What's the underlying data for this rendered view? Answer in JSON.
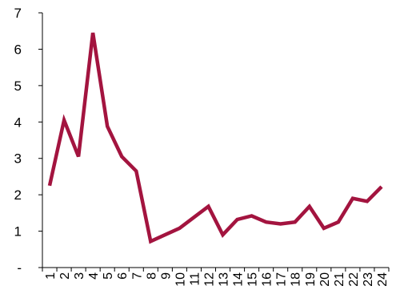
{
  "chart_data": {
    "type": "line",
    "title": "",
    "xlabel": "",
    "ylabel": "",
    "x": [
      "1",
      "2",
      "3",
      "4",
      "5",
      "6",
      "7",
      "8",
      "9",
      "10",
      "11",
      "12",
      "13",
      "14",
      "15",
      "16",
      "17",
      "18",
      "19",
      "20",
      "21",
      "22",
      "23",
      "24"
    ],
    "series": [
      {
        "values": [
          2.25,
          4.05,
          3.05,
          6.45,
          3.88,
          3.05,
          2.65,
          0.72,
          0.9,
          1.08,
          1.38,
          1.68,
          0.9,
          1.32,
          1.42,
          1.25,
          1.2,
          1.25,
          1.68,
          1.08,
          1.25,
          1.9,
          1.82,
          2.22
        ],
        "color": "#a3143f"
      }
    ],
    "ylim": [
      0,
      7
    ],
    "y_ticks": [
      {
        "value": 0,
        "label": "-"
      },
      {
        "value": 1,
        "label": "1"
      },
      {
        "value": 2,
        "label": "2"
      },
      {
        "value": 3,
        "label": "3"
      },
      {
        "value": 4,
        "label": "4"
      },
      {
        "value": 5,
        "label": "5"
      },
      {
        "value": 6,
        "label": "6"
      },
      {
        "value": 7,
        "label": "7"
      }
    ],
    "grid": false,
    "legend": "none"
  }
}
